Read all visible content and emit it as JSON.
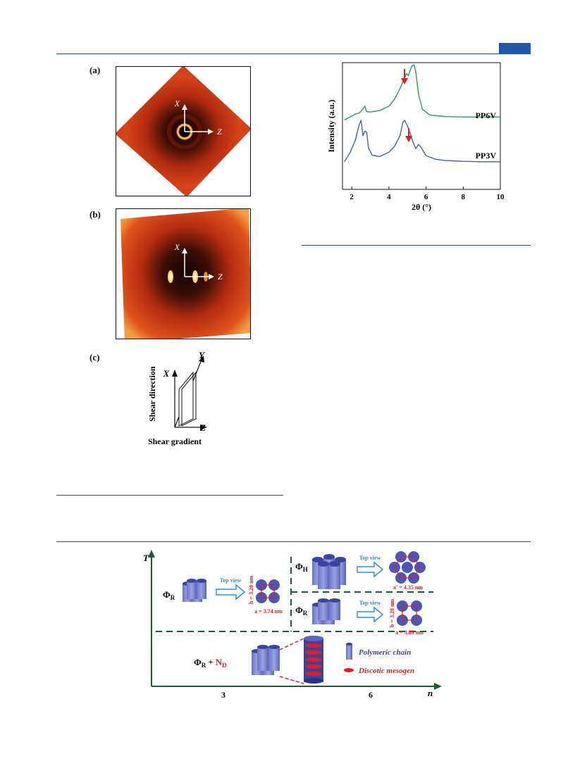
{
  "panels": {
    "a": "(a)",
    "b": "(b)",
    "c": "(c)"
  },
  "xray": {
    "axis_x": "X",
    "axis_z": "Z"
  },
  "schematic": {
    "axis_x": "X",
    "axis_y": "Y",
    "axis_z": "Z",
    "shear_direction": "Shear direction",
    "shear_gradient": "Shear gradient"
  },
  "chart_data": {
    "type": "line",
    "xlabel": "2θ (°)",
    "ylabel": "Intensity (a.u.)",
    "xlim": [
      1.5,
      10
    ],
    "x_ticks": [
      "2",
      "4",
      "6",
      "8",
      "10"
    ],
    "series": [
      {
        "name": "PP6V",
        "color": "#2e9e5b",
        "x": [
          1.6,
          1.9,
          2.2,
          2.4,
          2.6,
          2.7,
          2.8,
          3.0,
          3.5,
          4.0,
          4.3,
          4.6,
          4.8,
          4.95,
          5.05,
          5.15,
          5.25,
          5.35,
          5.45,
          5.6,
          5.8,
          6.2,
          7.0,
          8.0,
          9.0,
          10.0
        ],
        "y": [
          0.08,
          0.14,
          0.2,
          0.22,
          0.3,
          0.36,
          0.25,
          0.24,
          0.27,
          0.36,
          0.5,
          0.72,
          0.9,
          1.02,
          0.98,
          1.1,
          1.18,
          1.2,
          1.05,
          0.6,
          0.3,
          0.18,
          0.15,
          0.14,
          0.14,
          0.14
        ]
      },
      {
        "name": "PP3V",
        "color": "#4a5fb0",
        "x": [
          1.6,
          1.9,
          2.2,
          2.4,
          2.5,
          2.6,
          2.7,
          2.8,
          2.9,
          3.1,
          3.5,
          4.0,
          4.3,
          4.6,
          4.75,
          4.85,
          5.0,
          5.15,
          5.3,
          5.45,
          5.6,
          5.75,
          6.0,
          6.5,
          7.0,
          8.0,
          9.0,
          10.0
        ],
        "y": [
          0.1,
          0.3,
          0.6,
          0.95,
          1.05,
          0.7,
          0.8,
          0.78,
          0.42,
          0.25,
          0.22,
          0.32,
          0.45,
          0.7,
          1.0,
          1.05,
          0.92,
          0.75,
          0.55,
          0.4,
          0.5,
          0.42,
          0.24,
          0.16,
          0.13,
          0.11,
          0.1,
          0.1
        ]
      }
    ]
  },
  "phase_diagram": {
    "y_axis": "T",
    "x_axis": "n",
    "x_ticks": [
      "3",
      "6"
    ],
    "phi_r": "Φ",
    "sub_r": "R",
    "sub_h": "H",
    "nd_main": "N",
    "nd_sub": "D",
    "top_view": "Top view",
    "a1": "a = 3.74 nm",
    "b1": "b = 3.20 nm",
    "a2": "a' = 4.35 nm",
    "a3": "a = 3.89 nm",
    "b3": "b = 3.28 nm",
    "legend_chain": "Polymeric chain",
    "legend_mesogen": "Discotic mesogen",
    "plus": "+"
  }
}
